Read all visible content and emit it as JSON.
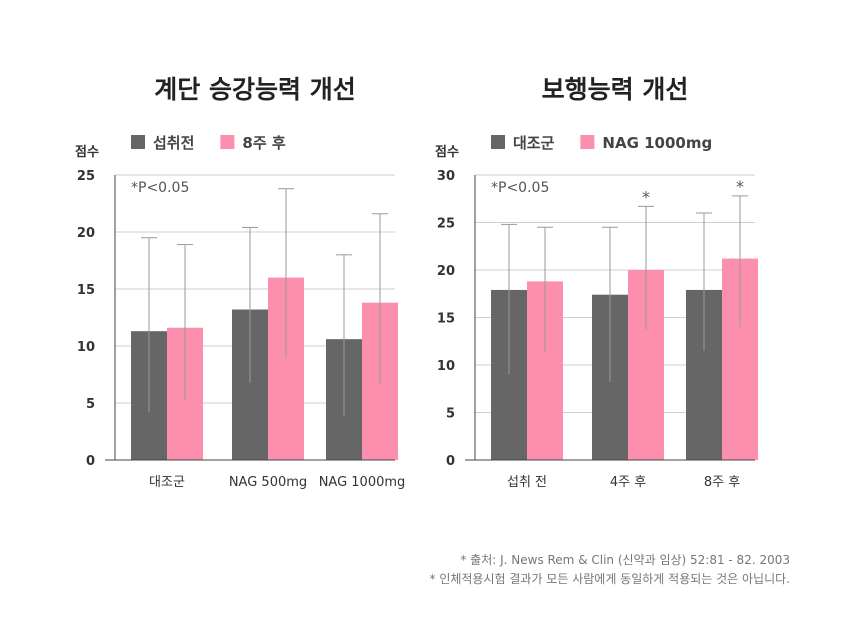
{
  "chart_data": [
    {
      "type": "bar",
      "title": "계단 승강능력 개선",
      "ylabel": "점수",
      "annotation": "*P<0.05",
      "categories": [
        "대조군",
        "NAG 500mg",
        "NAG 1000mg"
      ],
      "ylim": [
        0,
        25
      ],
      "yticks": [
        0,
        5,
        10,
        15,
        20,
        25
      ],
      "grid": true,
      "legend_position": "top",
      "series": [
        {
          "name": "섭취전",
          "color": "#666666",
          "values": [
            11.3,
            13.2,
            10.6
          ],
          "error_upper": [
            19.5,
            20.4,
            18.0
          ],
          "error_lower": [
            4.2,
            6.8,
            3.9
          ]
        },
        {
          "name": "8주 후",
          "color": "#fb8fad",
          "values": [
            11.6,
            16.0,
            13.8
          ],
          "error_upper": [
            18.9,
            23.8,
            21.6
          ],
          "error_lower": [
            5.2,
            8.9,
            6.6
          ]
        }
      ],
      "significance": []
    },
    {
      "type": "bar",
      "title": "보행능력 개선",
      "ylabel": "점수",
      "annotation": "*P<0.05",
      "categories": [
        "섭취 전",
        "4주 후",
        "8주 후"
      ],
      "ylim": [
        0,
        30
      ],
      "yticks": [
        0,
        5,
        10,
        15,
        20,
        25,
        30
      ],
      "grid": true,
      "legend_position": "top",
      "series": [
        {
          "name": "대조군",
          "color": "#666666",
          "values": [
            17.9,
            17.4,
            17.9
          ],
          "error_upper": [
            24.8,
            24.5,
            26.0
          ],
          "error_lower": [
            9.0,
            8.2,
            11.5
          ]
        },
        {
          "name": "NAG 1000mg",
          "color": "#fb8fad",
          "values": [
            18.8,
            20.0,
            21.2
          ],
          "error_upper": [
            24.5,
            26.7,
            27.8
          ],
          "error_lower": [
            11.4,
            13.7,
            14.0
          ]
        }
      ],
      "significance": [
        "",
        "*",
        "*"
      ]
    }
  ],
  "footnotes": [
    "* 출처: J. News Rem & Clin (신약과 임상) 52:81 - 82. 2003",
    "* 인체적용시험 결과가 모든 사람에게 동일하게 적용되는 것은 아닙니다."
  ]
}
